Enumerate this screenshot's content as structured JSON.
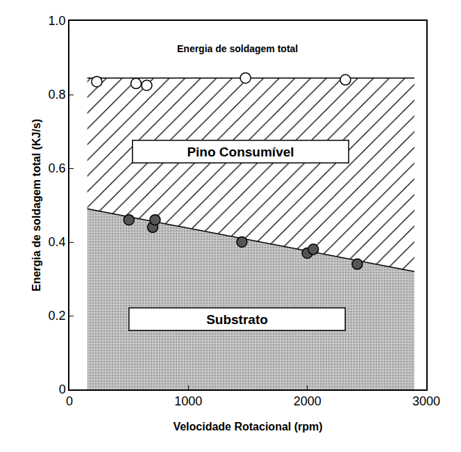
{
  "chart_data": {
    "type": "scatter",
    "xlabel": "Velocidade Rotacional (rpm)",
    "ylabel": "Energia de soldagem total (KJ/s)",
    "xlim": [
      0,
      3000
    ],
    "ylim": [
      0,
      1.0
    ],
    "xticks": [
      0,
      1000,
      2000,
      3000
    ],
    "yticks": [
      0,
      0.2,
      0.4,
      0.6,
      0.8,
      {
        "value": 1.0,
        "label": "1.0"
      }
    ],
    "grid": false,
    "series": [
      {
        "name": "Substrato",
        "type": "area",
        "color": "#c8c8c8",
        "x": [
          150,
          2900
        ],
        "values": [
          0.49,
          0.32
        ]
      },
      {
        "name": "Pino Consumível",
        "type": "hatched_area",
        "color": "#000000",
        "x": [
          150,
          2900
        ],
        "values": [
          0.845,
          0.845
        ]
      },
      {
        "name": "Energia de soldagem total",
        "type": "scatter",
        "marker": "open_circle",
        "color": "#000000",
        "x": [
          230,
          560,
          650,
          1480,
          2320
        ],
        "values": [
          0.835,
          0.83,
          0.825,
          0.845,
          0.84
        ]
      },
      {
        "type": "scatter",
        "marker": "half_filled_circle",
        "color": "#555555",
        "x": [
          500,
          700,
          720,
          1450,
          2000,
          2050,
          2420
        ],
        "values": [
          0.46,
          0.44,
          0.46,
          0.4,
          0.37,
          0.38,
          0.34
        ]
      }
    ]
  }
}
